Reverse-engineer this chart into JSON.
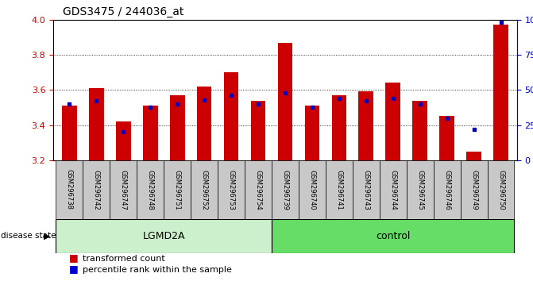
{
  "title": "GDS3475 / 244036_at",
  "samples": [
    "GSM296738",
    "GSM296742",
    "GSM296747",
    "GSM296748",
    "GSM296751",
    "GSM296752",
    "GSM296753",
    "GSM296754",
    "GSM296739",
    "GSM296740",
    "GSM296741",
    "GSM296743",
    "GSM296744",
    "GSM296745",
    "GSM296746",
    "GSM296749",
    "GSM296750"
  ],
  "red_values": [
    3.51,
    3.61,
    3.42,
    3.51,
    3.57,
    3.62,
    3.7,
    3.54,
    3.87,
    3.51,
    3.57,
    3.59,
    3.64,
    3.54,
    3.45,
    3.25,
    3.97
  ],
  "blue_values": [
    40,
    42,
    20,
    38,
    40,
    43,
    46,
    40,
    48,
    38,
    44,
    42,
    44,
    40,
    30,
    22,
    98
  ],
  "ymin": 3.2,
  "ymax": 4.0,
  "yticks_left": [
    3.2,
    3.4,
    3.6,
    3.8,
    4.0
  ],
  "yticks_right": [
    0,
    25,
    50,
    75,
    100
  ],
  "bar_color": "#cc0000",
  "blue_color": "#0000cc",
  "grey_box_color": "#c8c8c8",
  "lgmd2a_color": "#ccf0cc",
  "control_color": "#66dd66",
  "lgmd2a_label": "LGMD2A",
  "control_label": "control",
  "disease_state_label": "disease state",
  "n_lgmd2a": 8,
  "n_control": 9,
  "legend_red": "transformed count",
  "legend_blue": "percentile rank within the sample"
}
